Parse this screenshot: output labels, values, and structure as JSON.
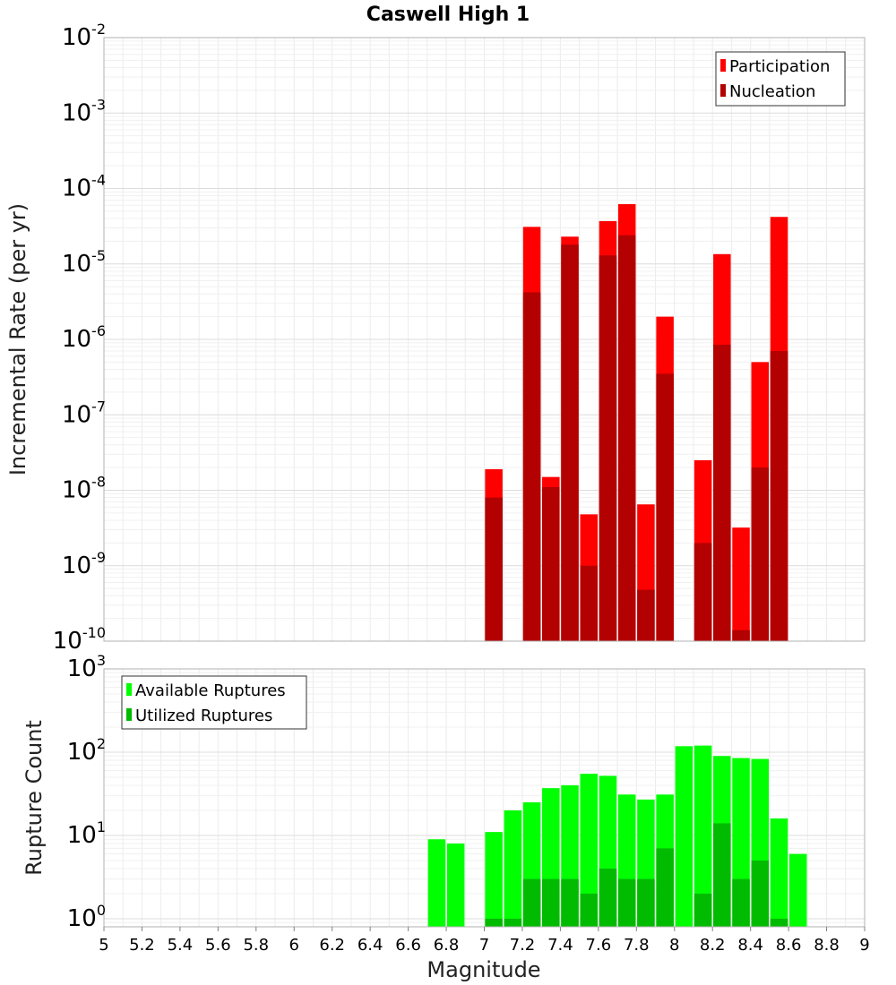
{
  "chart_data": [
    {
      "type": "bar",
      "title": "Caswell High 1",
      "xlabel": "Magnitude",
      "ylabel": "Incremental Rate (per yr)",
      "yscale": "log",
      "ylim": [
        1e-10,
        0.01
      ],
      "xlim": [
        5,
        9
      ],
      "grid": true,
      "legend_position": "top-right",
      "legend": [
        "Participation",
        "Nucleation"
      ],
      "x": [
        7.05,
        7.25,
        7.35,
        7.45,
        7.55,
        7.65,
        7.75,
        7.85,
        7.95,
        8.15,
        8.25,
        8.35,
        8.45,
        8.55
      ],
      "series": [
        {
          "name": "Participation",
          "color": "#ff0000",
          "values": [
            1.9e-08,
            3.1e-05,
            1.5e-08,
            2.3e-05,
            4.8e-09,
            3.7e-05,
            6.2e-05,
            6.5e-09,
            2e-06,
            2.5e-08,
            1.35e-05,
            3.2e-09,
            5e-07,
            4.2e-05
          ]
        },
        {
          "name": "Nucleation",
          "color": "#b30000",
          "values": [
            8e-09,
            4.2e-06,
            1.1e-08,
            1.8e-05,
            1e-09,
            1.3e-05,
            2.4e-05,
            4.8e-10,
            3.5e-07,
            2e-09,
            8.5e-07,
            1.4e-10,
            2e-08,
            7e-07
          ]
        }
      ]
    },
    {
      "type": "bar",
      "xlabel": "Magnitude",
      "ylabel": "Rupture Count",
      "yscale": "log",
      "ylim": [
        0.8,
        1000
      ],
      "xlim": [
        5,
        9
      ],
      "grid": true,
      "legend_position": "top-left",
      "legend": [
        "Available Ruptures",
        "Utilized Ruptures"
      ],
      "x": [
        6.75,
        6.85,
        7.05,
        7.15,
        7.25,
        7.35,
        7.45,
        7.55,
        7.65,
        7.75,
        7.85,
        7.95,
        8.05,
        8.15,
        8.25,
        8.35,
        8.45,
        8.55,
        8.65
      ],
      "series": [
        {
          "name": "Available Ruptures",
          "color": "#00ff00",
          "values": [
            9,
            8,
            11,
            20,
            25,
            37,
            40,
            55,
            52,
            31,
            27,
            31,
            118,
            120,
            90,
            85,
            83,
            16,
            6
          ]
        },
        {
          "name": "Utilized Ruptures",
          "color": "#00bb00",
          "values": [
            0,
            0,
            1,
            1,
            3,
            3,
            3,
            2,
            4,
            3,
            3,
            7,
            0,
            2,
            14,
            3,
            5,
            1,
            0
          ]
        }
      ],
      "xticks": [
        "5",
        "5.2",
        "5.4",
        "5.6",
        "5.8",
        "6",
        "6.2",
        "6.4",
        "6.6",
        "6.8",
        "7",
        "7.2",
        "7.4",
        "7.6",
        "7.8",
        "8",
        "8.2",
        "8.4",
        "8.6",
        "8.8",
        "9"
      ]
    }
  ]
}
